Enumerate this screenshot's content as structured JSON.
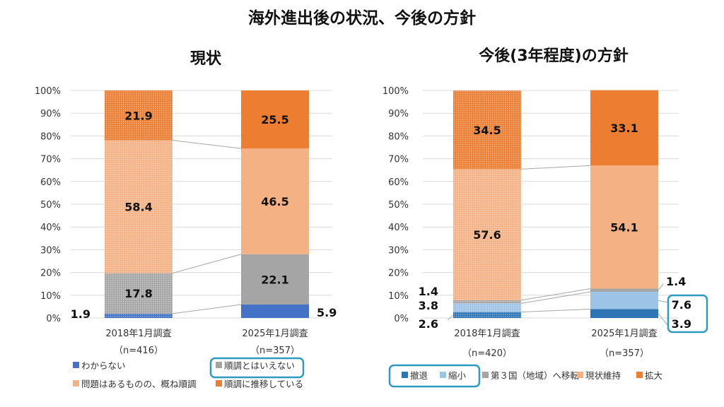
{
  "title": "海外進出後の状況、今後の方針",
  "chart_data": [
    {
      "type": "bar",
      "stacked": true,
      "title": "現状",
      "ylim": [
        0,
        100
      ],
      "yticks": [
        "0%",
        "10%",
        "20%",
        "30%",
        "40%",
        "50%",
        "60%",
        "70%",
        "80%",
        "90%",
        "100%"
      ],
      "grid": true,
      "legend_position": "bottom",
      "categories": [
        {
          "label": "2018年1月調査",
          "n": "（n=416）"
        },
        {
          "label": "2025年1月調査",
          "n": "（n=357）"
        }
      ],
      "series": [
        {
          "name": "わからない",
          "color": "#4472C4",
          "values": [
            1.9,
            5.9
          ],
          "labels": [
            "1.9",
            "5.9"
          ]
        },
        {
          "name": "順調とはいえない",
          "color": "#A5A5A5",
          "values": [
            17.8,
            22.1
          ],
          "labels": [
            "17.8",
            "22.1"
          ],
          "highlighted": true
        },
        {
          "name": "問題はあるものの、概ね順調",
          "color": "#F4B183",
          "values": [
            58.4,
            46.5
          ],
          "labels": [
            "58.4",
            "46.5"
          ]
        },
        {
          "name": "順調に推移している",
          "color": "#ED7D31",
          "values": [
            21.9,
            25.5
          ],
          "labels": [
            "21.9",
            "25.5"
          ]
        }
      ]
    },
    {
      "type": "bar",
      "stacked": true,
      "title": "今後(3年程度)の方針",
      "ylim": [
        0,
        100
      ],
      "yticks": [
        "0%",
        "10%",
        "20%",
        "30%",
        "40%",
        "50%",
        "60%",
        "70%",
        "80%",
        "90%",
        "100%"
      ],
      "grid": true,
      "legend_position": "bottom",
      "categories": [
        {
          "label": "2018年1月調査",
          "n": "（n=420）"
        },
        {
          "label": "2025年1月調査",
          "n": "（n=357）"
        }
      ],
      "series": [
        {
          "name": "撤退",
          "color": "#2E75B6",
          "values": [
            2.6,
            3.9
          ],
          "labels": [
            "2.6",
            "3.9"
          ],
          "highlighted": true
        },
        {
          "name": "縮小",
          "color": "#9DC3E6",
          "values": [
            3.8,
            7.6
          ],
          "labels": [
            "3.8",
            "7.6"
          ],
          "highlighted": true
        },
        {
          "name": "第３国（地域）へ移転",
          "color": "#A5A5A5",
          "values": [
            1.4,
            1.4
          ],
          "labels": [
            "1.4",
            "1.4"
          ]
        },
        {
          "name": "現状維持",
          "color": "#F4B183",
          "values": [
            57.6,
            54.1
          ],
          "labels": [
            "57.6",
            "54.1"
          ]
        },
        {
          "name": "拡大",
          "color": "#ED7D31",
          "values": [
            34.5,
            33.1
          ],
          "labels": [
            "34.5",
            "33.1"
          ]
        }
      ]
    }
  ]
}
